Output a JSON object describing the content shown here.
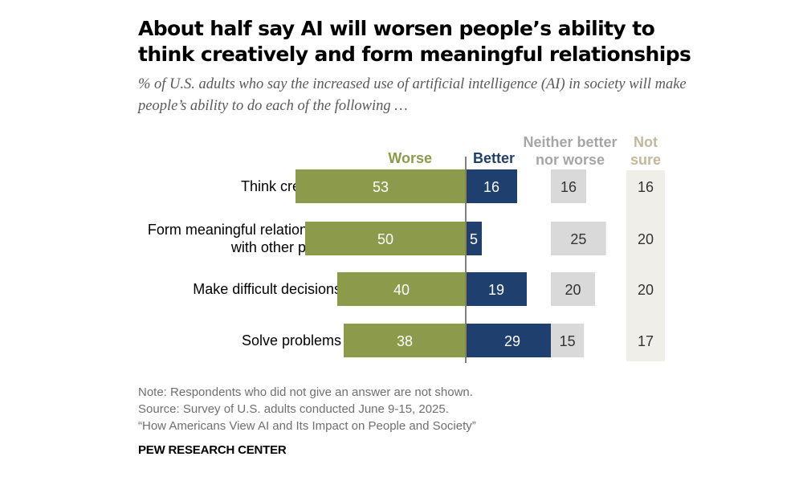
{
  "title": "About half say AI will worsen people’s ability to think creatively and form meaningful relationships",
  "subtitle": "% of U.S. adults who say the increased use of artificial intelligence (AI) in society will make people’s ability to do each of the following …",
  "chart_data": {
    "type": "bar",
    "categories": [
      [
        "Think creatively"
      ],
      [
        "Form meaningful relationships",
        "with other people"
      ],
      [
        "Make difficult decisions"
      ],
      [
        "Solve problems"
      ]
    ],
    "series": [
      {
        "name": "Worse",
        "values": [
          53,
          50,
          40,
          38
        ]
      },
      {
        "name": "Better",
        "values": [
          16,
          5,
          19,
          29
        ]
      },
      {
        "name": "Neither better nor worse",
        "values": [
          16,
          25,
          20,
          15
        ]
      },
      {
        "name": "Not sure",
        "values": [
          16,
          20,
          20,
          17
        ]
      }
    ],
    "column_headers": {
      "worse": [
        "Worse"
      ],
      "better": [
        "Better"
      ],
      "neither": [
        "Neither better",
        "nor worse"
      ],
      "notsure": [
        "Not",
        "sure"
      ]
    },
    "colors": {
      "worse": "#8c9a4b",
      "better": "#1f3f6e",
      "neither": "#d9d9d9",
      "notsure_bg": "#f0eee9",
      "neither_header": "#a6a6a6",
      "notsure_header": "#c2b99b",
      "divider": "#7f7f7f"
    }
  },
  "footer": {
    "note": "Note: Respondents who did not give an answer are not shown.",
    "source": "Source: Survey of U.S. adults conducted June 9-15, 2025.",
    "report": "“How Americans View AI and Its Impact on People and Society”"
  },
  "brand": "PEW RESEARCH CENTER"
}
